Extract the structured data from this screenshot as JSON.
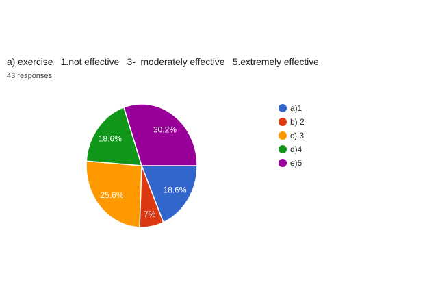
{
  "header": {
    "title": "a) exercise   1.not effective   3-  moderately effective   5.extremely effective",
    "responses_count": "43 responses"
  },
  "chart_data": {
    "type": "pie",
    "title": "a) exercise   1.not effective   3-  moderately effective   5.extremely effective",
    "subtitle": "43 responses",
    "total_responses": 43,
    "start_angle_deg": 90,
    "direction": "clockwise",
    "legend_position": "right",
    "slices": [
      {
        "label": "a)1",
        "count": 8,
        "percent": 18.6,
        "percent_label": "18.6%",
        "color": "#3366CC"
      },
      {
        "label": "b) 2",
        "count": 3,
        "percent": 7.0,
        "percent_label": "7%",
        "color": "#DC3912"
      },
      {
        "label": "c) 3",
        "count": 11,
        "percent": 25.6,
        "percent_label": "25.6%",
        "color": "#FF9900"
      },
      {
        "label": "d)4",
        "count": 8,
        "percent": 18.6,
        "percent_label": "18.6%",
        "color": "#109618"
      },
      {
        "label": "e)5",
        "count": 13,
        "percent": 30.2,
        "percent_label": "30.2%",
        "color": "#990099"
      }
    ]
  },
  "colors": {
    "background": "#ffffff",
    "title_text": "#212121",
    "subtitle_text": "#424242",
    "legend_text": "#222222",
    "slice_label_text": "#ffffff",
    "slice_border": "#ffffff"
  }
}
